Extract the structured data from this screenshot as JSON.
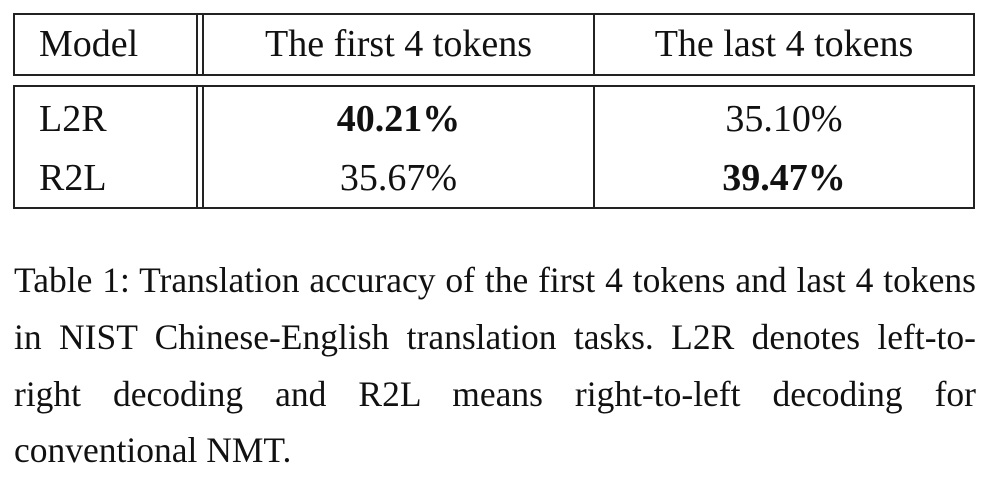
{
  "table": {
    "headers": [
      "Model",
      "The first 4 tokens",
      "The last 4 tokens"
    ],
    "rows": [
      {
        "model": "L2R",
        "first4": "40.21%",
        "last4": "35.10%",
        "bold": "first4"
      },
      {
        "model": "R2L",
        "first4": "35.67%",
        "last4": "39.47%",
        "bold": "last4"
      }
    ]
  },
  "caption": {
    "text": "Table 1: Translation accuracy of the first 4 tokens and last 4 tokens in NIST Chinese-English translation tasks. L2R denotes left-to-right decoding and R2L means right-to-left decoding for conventional NMT."
  }
}
